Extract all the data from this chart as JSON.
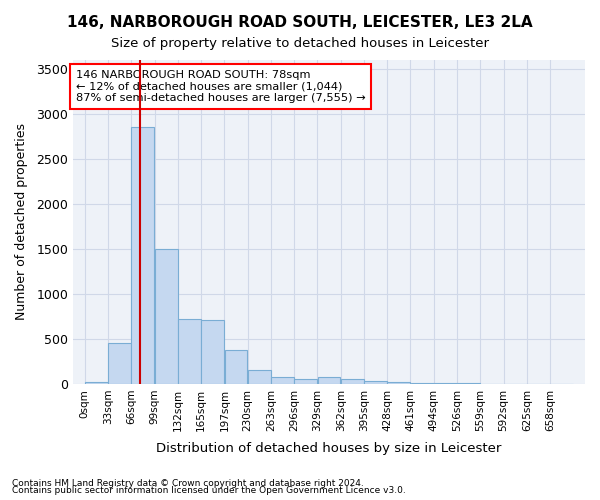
{
  "title1": "146, NARBOROUGH ROAD SOUTH, LEICESTER, LE3 2LA",
  "title2": "Size of property relative to detached houses in Leicester",
  "xlabel": "Distribution of detached houses by size in Leicester",
  "ylabel": "Number of detached properties",
  "footnote1": "Contains HM Land Registry data © Crown copyright and database right 2024.",
  "footnote2": "Contains public sector information licensed under the Open Government Licence v3.0.",
  "annotation_line1": "146 NARBOROUGH ROAD SOUTH: 78sqm",
  "annotation_line2": "← 12% of detached houses are smaller (1,044)",
  "annotation_line3": "87% of semi-detached houses are larger (7,555) →",
  "bar_color": "#c5d8f0",
  "bar_edge_color": "#7aadd4",
  "grid_color": "#d0d8e8",
  "background_color": "#eef2f8",
  "red_line_color": "#cc0000",
  "bin_labels": [
    "0sqm",
    "33sqm",
    "66sqm",
    "99sqm",
    "132sqm",
    "165sqm",
    "197sqm",
    "230sqm",
    "263sqm",
    "296sqm",
    "329sqm",
    "362sqm",
    "395sqm",
    "428sqm",
    "461sqm",
    "494sqm",
    "526sqm",
    "559sqm",
    "592sqm",
    "625sqm",
    "658sqm"
  ],
  "bar_values": [
    20,
    450,
    2850,
    1500,
    720,
    710,
    380,
    150,
    75,
    55,
    75,
    50,
    35,
    20,
    10,
    5,
    5,
    3,
    2,
    1,
    0
  ],
  "ylim": [
    0,
    3600
  ],
  "yticks": [
    0,
    500,
    1000,
    1500,
    2000,
    2500,
    3000,
    3500
  ],
  "bin_width": 33,
  "property_size": 78
}
